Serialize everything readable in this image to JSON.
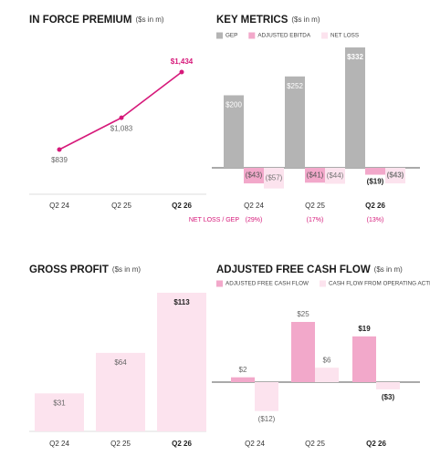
{
  "chart_data": [
    {
      "type": "line",
      "title": "IN FORCE PREMIUM",
      "subtitle": "($s in m)",
      "categories": [
        "Q2 24",
        "Q2 25",
        "Q2 26"
      ],
      "values": [
        839,
        1083,
        1434
      ],
      "value_labels": [
        "$839",
        "$1,083",
        "$1,434"
      ],
      "color": "#d6197a"
    },
    {
      "type": "bar",
      "title": "KEY METRICS",
      "subtitle": "($s in m)",
      "categories": [
        "Q2 24",
        "Q2 25",
        "Q2 26"
      ],
      "series": [
        {
          "name": "GEP",
          "color": "#b4b4b4",
          "values": [
            200,
            252,
            332
          ],
          "value_labels": [
            "$200",
            "$252",
            "$332"
          ]
        },
        {
          "name": "ADJUSTED EBITDA",
          "color": "#f2a8ca",
          "values": [
            -43,
            -41,
            -19
          ],
          "value_labels": [
            "($43)",
            "($41)",
            "($19)"
          ]
        },
        {
          "name": "NET LOSS",
          "color": "#fce3ee",
          "values": [
            -57,
            -44,
            -43
          ],
          "value_labels": [
            "($57)",
            "($44)",
            "($43)"
          ]
        }
      ],
      "ratio_label": "NET LOSS / GEP",
      "ratio_values": [
        -29,
        -17,
        -13
      ],
      "ratio_value_labels": [
        "(29%)",
        "(17%)",
        "(13%)"
      ]
    },
    {
      "type": "bar",
      "title": "GROSS PROFIT",
      "subtitle": "($s in m)",
      "categories": [
        "Q2 24",
        "Q2 25",
        "Q2 26"
      ],
      "values": [
        31,
        64,
        113
      ],
      "value_labels": [
        "$31",
        "$64",
        "$113"
      ],
      "color": "#fce3ee"
    },
    {
      "type": "bar",
      "title": "ADJUSTED FREE CASH FLOW",
      "subtitle": "($s in m)",
      "categories": [
        "Q2 24",
        "Q2 25",
        "Q2 26"
      ],
      "series": [
        {
          "name": "ADJUSTED FREE CASH FLOW",
          "color": "#f2a8ca",
          "values": [
            2,
            25,
            19
          ],
          "value_labels": [
            "$2",
            "$25",
            "$19"
          ]
        },
        {
          "name": "CASH FLOW FROM OPERATING ACTIVITIES",
          "color": "#fce3ee",
          "values": [
            -12,
            6,
            -3
          ],
          "value_labels": [
            "($12)",
            "$6",
            "($3)"
          ]
        }
      ]
    }
  ]
}
